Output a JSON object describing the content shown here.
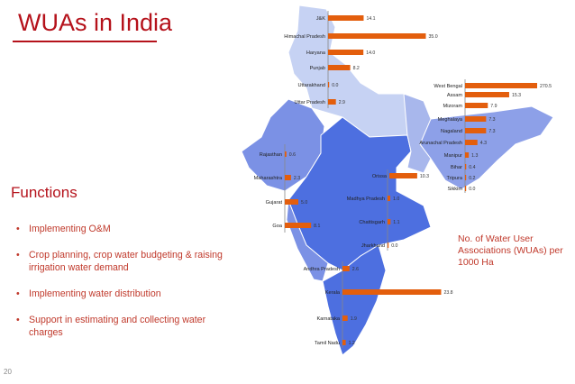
{
  "slide": {
    "title": "WUAs in India",
    "functions_heading": "Functions",
    "functions": [
      "Implementing O&M",
      "Crop planning, crop water budgeting & raising irrigation water  demand",
      "Implementing water distribution",
      "Support in estimating and collecting water charges"
    ],
    "page_number": "20"
  },
  "colors": {
    "accent": "#b5121b",
    "bar": "#e35e0d",
    "map_dark": "#4d6fe0",
    "map_mid": "#7b91e5",
    "map_light": "#c6d2f3"
  },
  "chart_data": {
    "type": "bar",
    "orientation": "horizontal",
    "title": "",
    "legend_note": "No. of Water User Associations (WUAs) per 1000 Ha",
    "series": [
      {
        "values": [
          {
            "state": "J&K",
            "value": 14.1
          },
          {
            "state": "Himachal Pradesh",
            "value": 35.0
          },
          {
            "state": "Haryana",
            "value": 14.0
          },
          {
            "state": "Punjab",
            "value": 8.2
          },
          {
            "state": "Uttarakhand",
            "value": 0.0
          },
          {
            "state": "Uttar Pradesh",
            "value": 2.9
          },
          {
            "state": "West Bengal",
            "value": 270.5
          },
          {
            "state": "Assam",
            "value": 15.3
          },
          {
            "state": "Mizoram",
            "value": 7.9
          },
          {
            "state": "Meghalaya",
            "value": 7.3
          },
          {
            "state": "Nagaland",
            "value": 7.3
          },
          {
            "state": "Arunachal Pradesh",
            "value": 4.3
          },
          {
            "state": "Manipur",
            "value": 1.3
          },
          {
            "state": "Bihar",
            "value": 0.4
          },
          {
            "state": "Tripura",
            "value": 0.2
          },
          {
            "state": "Sikkim",
            "value": 0.0
          },
          {
            "state": "Rajasthan",
            "value": 0.6
          },
          {
            "state": "Maharashtra",
            "value": 2.3
          },
          {
            "state": "Gujarat",
            "value": 5.0
          },
          {
            "state": "Goa",
            "value": 8.1
          },
          {
            "state": "Orissa",
            "value": 10.3
          },
          {
            "state": "Madhya Pradesh",
            "value": 1.0
          },
          {
            "state": "Chattisgarh",
            "value": 1.1
          },
          {
            "state": "Jharkhand",
            "value": 0.0
          },
          {
            "state": "Andhra Pradesh",
            "value": 2.6
          },
          {
            "state": "Kerala",
            "value": 23.8
          },
          {
            "state": "Karnataka",
            "value": 1.9
          },
          {
            "state": "Tamil Nadu",
            "value": 1.2
          }
        ]
      }
    ]
  }
}
